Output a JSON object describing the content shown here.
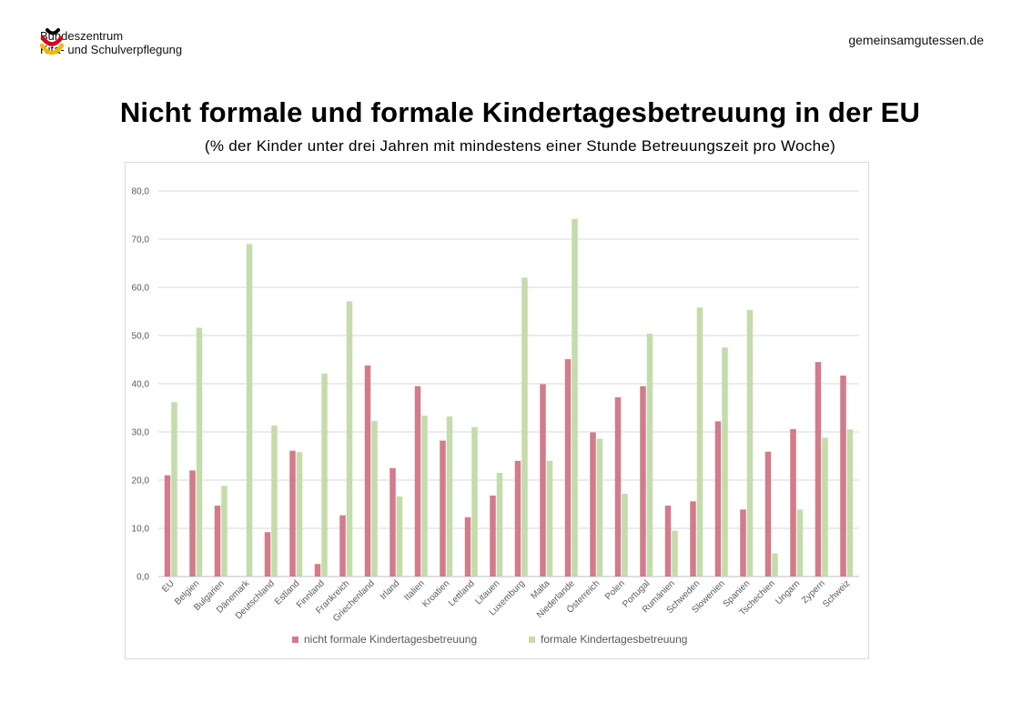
{
  "header": {
    "org_line1": "Bundeszentrum",
    "org_line2": "Kita- und Schulverpflegung",
    "site": "gemeinsamgutessen.de",
    "logo_colors": [
      "#000000",
      "#d9001b",
      "#f5b800"
    ]
  },
  "chart_data": {
    "type": "bar",
    "title": "Nicht formale und formale Kindertagesbetreuung in der EU",
    "subtitle": "(% der Kinder unter drei Jahren mit mindestens einer Stunde Betreuungszeit pro Woche)",
    "ylim": [
      0,
      80
    ],
    "yticks": [
      "0,0",
      "10,0",
      "20,0",
      "30,0",
      "40,0",
      "50,0",
      "60,0",
      "70,0",
      "80,0"
    ],
    "grid": true,
    "legend_position": "bottom",
    "categories": [
      "EU",
      "Belgien",
      "Bulgarien",
      "Dänemark",
      "Deutschland",
      "Estland",
      "Finnland",
      "Frankreich",
      "Griechenland",
      "Irland",
      "Italien",
      "Kroatien",
      "Lettland",
      "Litauen",
      "Luxemburg",
      "Malta",
      "Niederlande",
      "Österreich",
      "Polen",
      "Portugal",
      "Rumänien",
      "Schweden",
      "Slowenien",
      "Spanien",
      "Tschechien",
      "Ungarn",
      "Zypern",
      "Schweiz"
    ],
    "series": [
      {
        "name": "nicht formale Kindertagesbetreuung",
        "color": "#d27b8a",
        "values": [
          21.0,
          22.0,
          14.7,
          0,
          9.2,
          26.1,
          2.6,
          12.7,
          43.8,
          22.5,
          39.5,
          28.2,
          12.3,
          16.8,
          24.0,
          39.9,
          45.1,
          29.9,
          37.2,
          39.5,
          14.7,
          15.6,
          32.2,
          13.9,
          25.9,
          30.6,
          44.5,
          41.7
        ]
      },
      {
        "name": "formale Kindertagesbetreuung",
        "color": "#c4dcab",
        "values": [
          36.2,
          51.6,
          18.8,
          69.0,
          31.3,
          25.8,
          42.1,
          57.1,
          32.3,
          16.6,
          33.4,
          33.2,
          31.0,
          21.5,
          62.0,
          24.0,
          74.2,
          28.6,
          17.2,
          50.4,
          9.5,
          55.8,
          47.5,
          55.3,
          4.8,
          13.9,
          28.8,
          30.5
        ]
      }
    ]
  }
}
